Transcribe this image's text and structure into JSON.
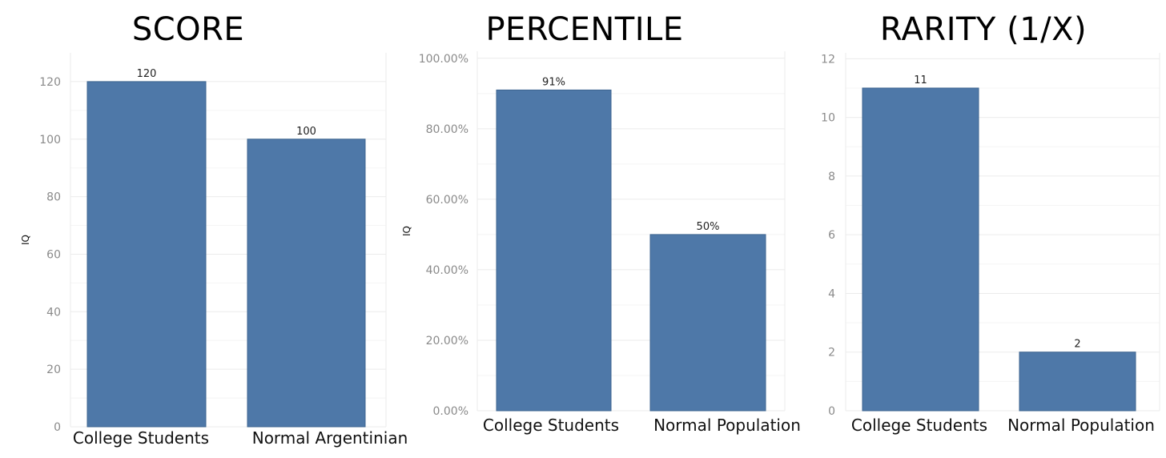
{
  "colors": {
    "bar": "#4e78a8",
    "grid": "#ebebeb"
  },
  "chart_data": [
    {
      "type": "bar",
      "title": "SCORE",
      "ylabel": "IQ",
      "xlabel": "",
      "categories": [
        "College Students",
        "Normal Argentinian"
      ],
      "values": [
        120,
        100
      ],
      "data_labels": [
        "120",
        "100"
      ],
      "ylim": [
        0,
        130
      ],
      "yticks": [
        0,
        20,
        40,
        60,
        80,
        100,
        120
      ],
      "ytick_labels": [
        "0",
        "20",
        "40",
        "60",
        "80",
        "100",
        "120"
      ],
      "grid": true
    },
    {
      "type": "bar",
      "title": "PERCENTILE",
      "ylabel": "IQ",
      "xlabel": "",
      "categories": [
        "College Students",
        "Normal Population"
      ],
      "values": [
        0.91,
        0.5
      ],
      "data_labels": [
        "91%",
        "50%"
      ],
      "ylim": [
        0,
        1.02
      ],
      "yticks": [
        0,
        0.2,
        0.4,
        0.6,
        0.8,
        1.0
      ],
      "ytick_labels": [
        "0.00%",
        "20.00%",
        "40.00%",
        "60.00%",
        "80.00%",
        "100.00%"
      ],
      "grid": true
    },
    {
      "type": "bar",
      "title": "RARITY (1/X)",
      "ylabel": "",
      "xlabel": "",
      "categories": [
        "College Students",
        "Normal Population"
      ],
      "values": [
        11,
        2
      ],
      "data_labels": [
        "11",
        "2"
      ],
      "ylim": [
        0,
        12.2
      ],
      "yticks": [
        0,
        2,
        4,
        6,
        8,
        10,
        12
      ],
      "ytick_labels": [
        "0",
        "2",
        "4",
        "6",
        "8",
        "10",
        "12"
      ],
      "grid": true
    }
  ]
}
